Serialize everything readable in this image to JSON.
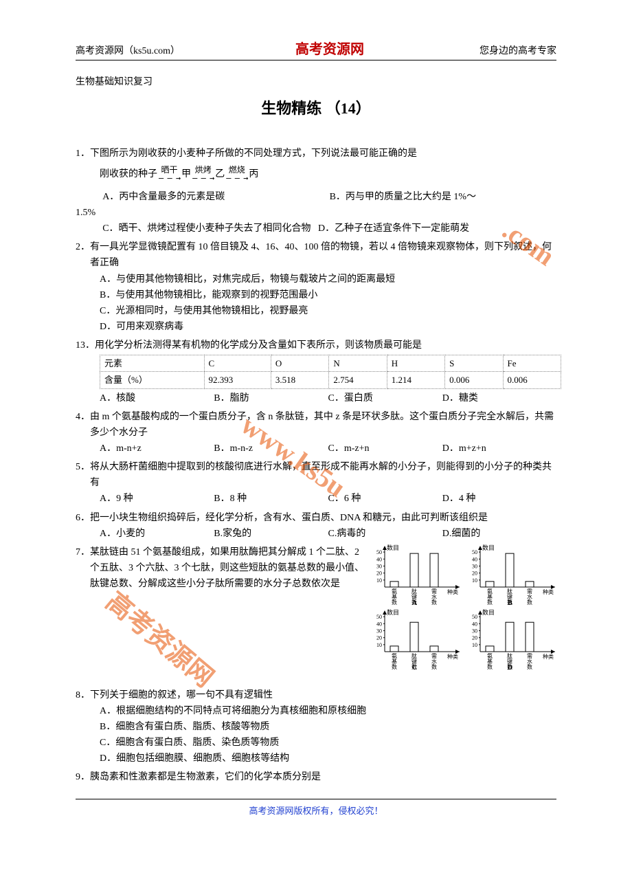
{
  "header": {
    "left": "高考资源网（ks5u.com）",
    "center": "高考资源网",
    "right": "您身边的高考专家"
  },
  "subtitle": "生物基础知识复习",
  "title": "生物精练 （14）",
  "q1": {
    "stem": "1．下图所示为刚收获的小麦种子所做的不同处理方式，下列说法最可能正确的是",
    "proc_start": "刚收获的种子",
    "step1": "晒干",
    "mid1": "甲",
    "step2": "烘烤",
    "mid2": "乙",
    "step3": "燃烧",
    "mid3": "丙",
    "optA": "A．丙中含量最多的元素是碳",
    "optB": "B．丙与甲的质量之比大约是 1%～",
    "extra": "1.5%",
    "optC": "C．晒干、烘烤过程使小麦种子失去了相同化合物",
    "optD": "D．乙种子在适宜条件下一定能萌发"
  },
  "q2": {
    "stem": "2．有一具光学显微镜配置有 10 倍目镜及 4、16、40、100 倍的物镜，若以 4 倍物镜来观察物体，则下列叙述，何者正确",
    "a": "A．与使用其他物镜相比，对焦完成后，物镜与载玻片之间的距离最短",
    "b": "B．与使用其他物镜相比，能观察到的视野范围最小",
    "c": "C．光源相同时，与使用其他物镜相比，视野最亮",
    "d": "D．可用来观察病毒"
  },
  "q13": {
    "stem": "13．用化学分析法测得某有机物的化学成分及含量如下表所示，则该物质最可能是",
    "row1": [
      "元素",
      "C",
      "O",
      "N",
      "H",
      "S",
      "Fe"
    ],
    "row2": [
      "含量（%）",
      "92.393",
      "3.518",
      "2.754",
      "1.214",
      "0.006",
      "0.006"
    ],
    "opts": [
      "A．核酸",
      "B．脂肪",
      "C．蛋白质",
      "D．糖类"
    ]
  },
  "q4": {
    "stem": "4．由 m 个氨基酸构成的一个蛋白质分子，含 n 条肽链，其中 z 条是环状多肽。这个蛋白质分子完全水解后，共需多少个水分子",
    "opts": [
      "A．m-n+z",
      "B．m-n-z",
      "C．m-z+n",
      "D．m+z+n"
    ]
  },
  "q5": {
    "stem": "5．将从大肠杆菌细胞中提取到的核酸彻底进行水解，直至形成不能再水解的小分子，则能得到的小分子的种类共有",
    "opts": [
      "A．9 种",
      "B．8 种",
      "C．6 种",
      "D．4 种"
    ]
  },
  "q6": {
    "stem": "6．把一小块生物组织捣碎后，经化学分析，含有水、蛋白质、DNA 和糖元，由此可判断该组织是",
    "opts": [
      "A．小麦的",
      "B.家兔的",
      "C.病毒的",
      "D.细菌的"
    ]
  },
  "q7": {
    "stem": "7．某肽链由 51 个氨基酸组成，如果用肽酶把其分解成 1 个二肽、2 个五肽、3 个六肽、3 个七肽，则这些短肽的氨基总数的最小值、肽键总数、分解成这些小分子肽所需要的水分子总数依次是",
    "ylabel": "数目",
    "yticks": [
      10,
      20,
      30,
      40,
      50
    ],
    "xlabels": [
      "氨基数",
      "肽键数",
      "需水数"
    ],
    "xright": "种类",
    "charts": {
      "A": {
        "bars": [
          8,
          48,
          48
        ]
      },
      "B": {
        "bars": [
          8,
          48,
          8
        ]
      },
      "C": {
        "bars": [
          8,
          42,
          8
        ]
      },
      "D": {
        "bars": [
          8,
          42,
          42
        ]
      }
    },
    "chart_style": {
      "bar_color": "#ffffff",
      "bar_border": "#000000",
      "axis_color": "#000000",
      "width": 135,
      "height": 90,
      "ymax": 55
    }
  },
  "q8": {
    "stem": "8．下列关于细胞的叙述，哪一句不具有逻辑性",
    "a": "A．根据细胞结构的不同特点可将细胞分为真核细胞和原核细胞",
    "b": "B．细胞含有蛋白质、脂质、核酸等物质",
    "c": "C．细胞含有蛋白质、脂质、染色质等物质",
    "d": "D．细胞包括细胞膜、细胞质、细胞核等结构"
  },
  "q9": {
    "stem": "9．胰岛素和性激素都是生物激素，它们的化学本质分别是"
  },
  "watermarks": {
    "wm1": ".com",
    "wm2": "www.ks5u",
    "wm3": "高考资源网"
  },
  "footer": "高考资源网版权所有，侵权必究！"
}
